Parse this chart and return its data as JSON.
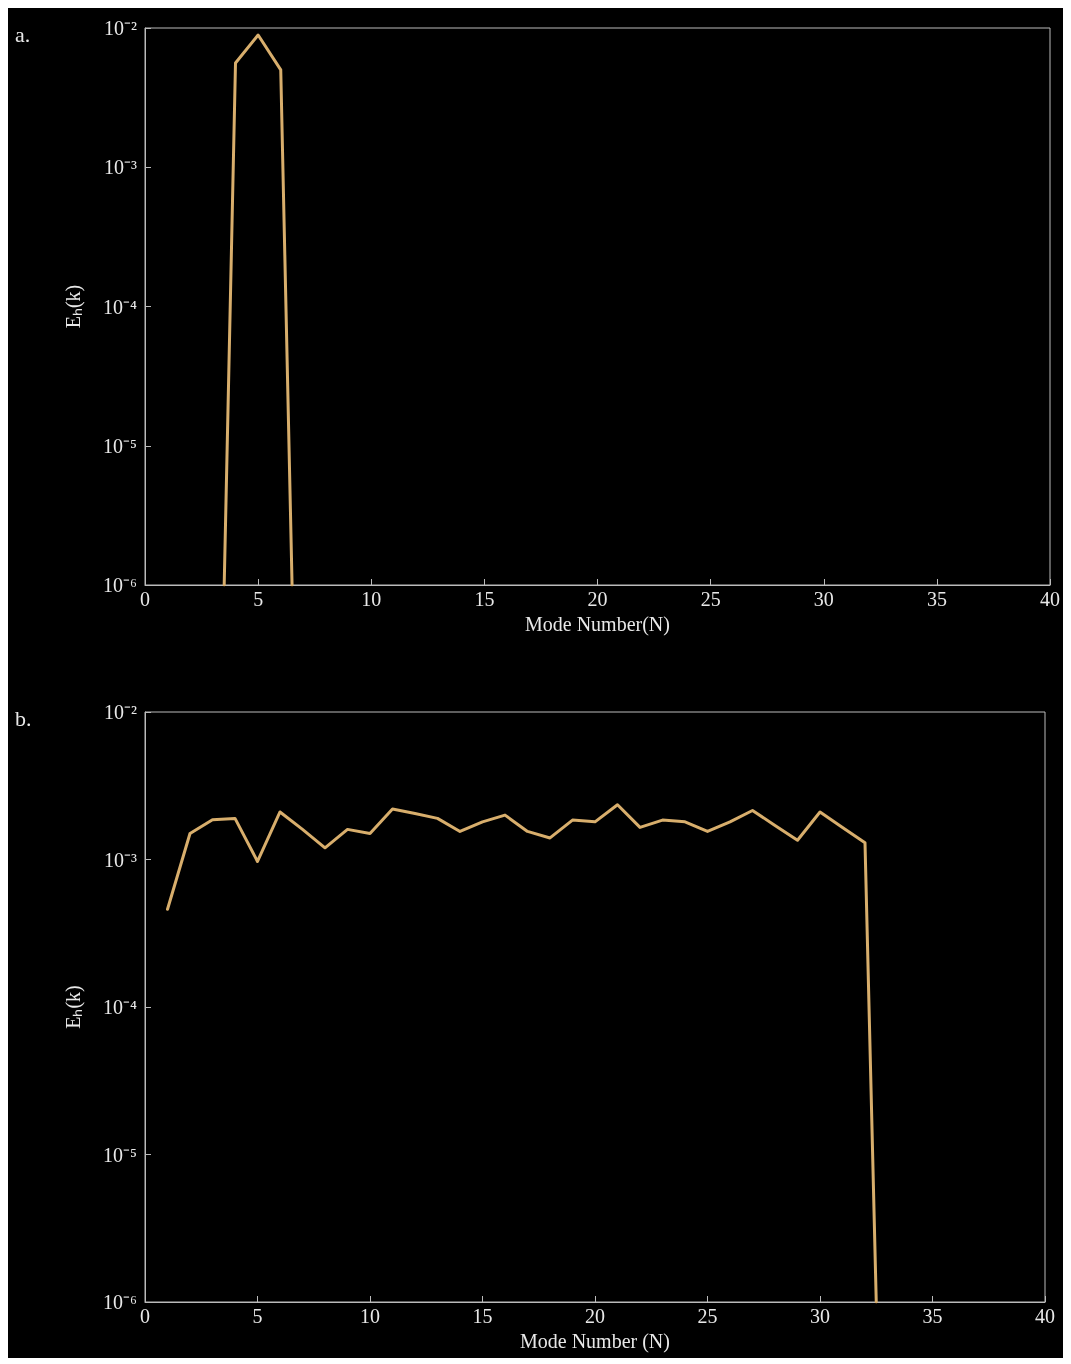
{
  "chart_data": [
    {
      "type": "line",
      "title": "a.",
      "xlabel": "Mode Number(N)",
      "ylabel": "Eₕ(k)",
      "log": true,
      "grid": false,
      "marker": "none",
      "line_style": "solid",
      "xlim": [
        0,
        40
      ],
      "xticks": [
        0,
        5,
        10,
        15,
        20,
        25,
        30,
        35,
        40
      ],
      "ylim": [
        1e-06,
        0.01
      ],
      "yticks": [
        {
          "value": 1e-06,
          "label": "10⁻⁶"
        },
        {
          "value": 1e-05,
          "label": "10⁻⁵"
        },
        {
          "value": 0.0001,
          "label": "10⁻⁴"
        },
        {
          "value": 0.001,
          "label": "10⁻³"
        },
        {
          "value": 0.01,
          "label": "10⁻²"
        }
      ],
      "series": [
        {
          "color": "#d8ae6c",
          "x": [
            3.5,
            4,
            5,
            6,
            6.5
          ],
          "values": [
            1e-06,
            0.0056,
            0.0089,
            0.005,
            1e-06
          ]
        }
      ]
    },
    {
      "type": "line",
      "title": "b.",
      "xlabel": "Mode Number (N)",
      "ylabel": "Eₕ(k)",
      "log": true,
      "grid": false,
      "marker": "none",
      "line_style": "solid",
      "xlim": [
        0,
        40
      ],
      "xticks": [
        0,
        5,
        10,
        15,
        20,
        25,
        30,
        35,
        40
      ],
      "ylim": [
        1e-06,
        0.01
      ],
      "yticks": [
        {
          "value": 1e-06,
          "label": "10⁻⁶"
        },
        {
          "value": 1e-05,
          "label": "10⁻⁵"
        },
        {
          "value": 0.0001,
          "label": "10⁻⁴"
        },
        {
          "value": 0.001,
          "label": "10⁻³"
        },
        {
          "value": 0.01,
          "label": "10⁻²"
        }
      ],
      "series": [
        {
          "color": "#d8ae6c",
          "x": [
            1,
            2,
            3,
            4,
            5,
            6,
            7,
            8,
            9,
            10,
            11,
            12,
            13,
            14,
            15,
            16,
            17,
            18,
            19,
            20,
            21,
            22,
            23,
            24,
            25,
            26,
            27,
            28,
            29,
            30,
            31,
            32,
            32.5
          ],
          "values": [
            0.00046,
            0.0015,
            0.00186,
            0.0019,
            0.00097,
            0.0021,
            0.0016,
            0.0012,
            0.0016,
            0.0015,
            0.0022,
            0.00205,
            0.0019,
            0.00155,
            0.0018,
            0.002,
            0.00155,
            0.0014,
            0.00185,
            0.0018,
            0.00235,
            0.00165,
            0.00185,
            0.0018,
            0.00155,
            0.0018,
            0.00215,
            0.0017,
            0.00135,
            0.0021,
            0.00165,
            0.0013,
            1e-06
          ]
        }
      ]
    }
  ]
}
